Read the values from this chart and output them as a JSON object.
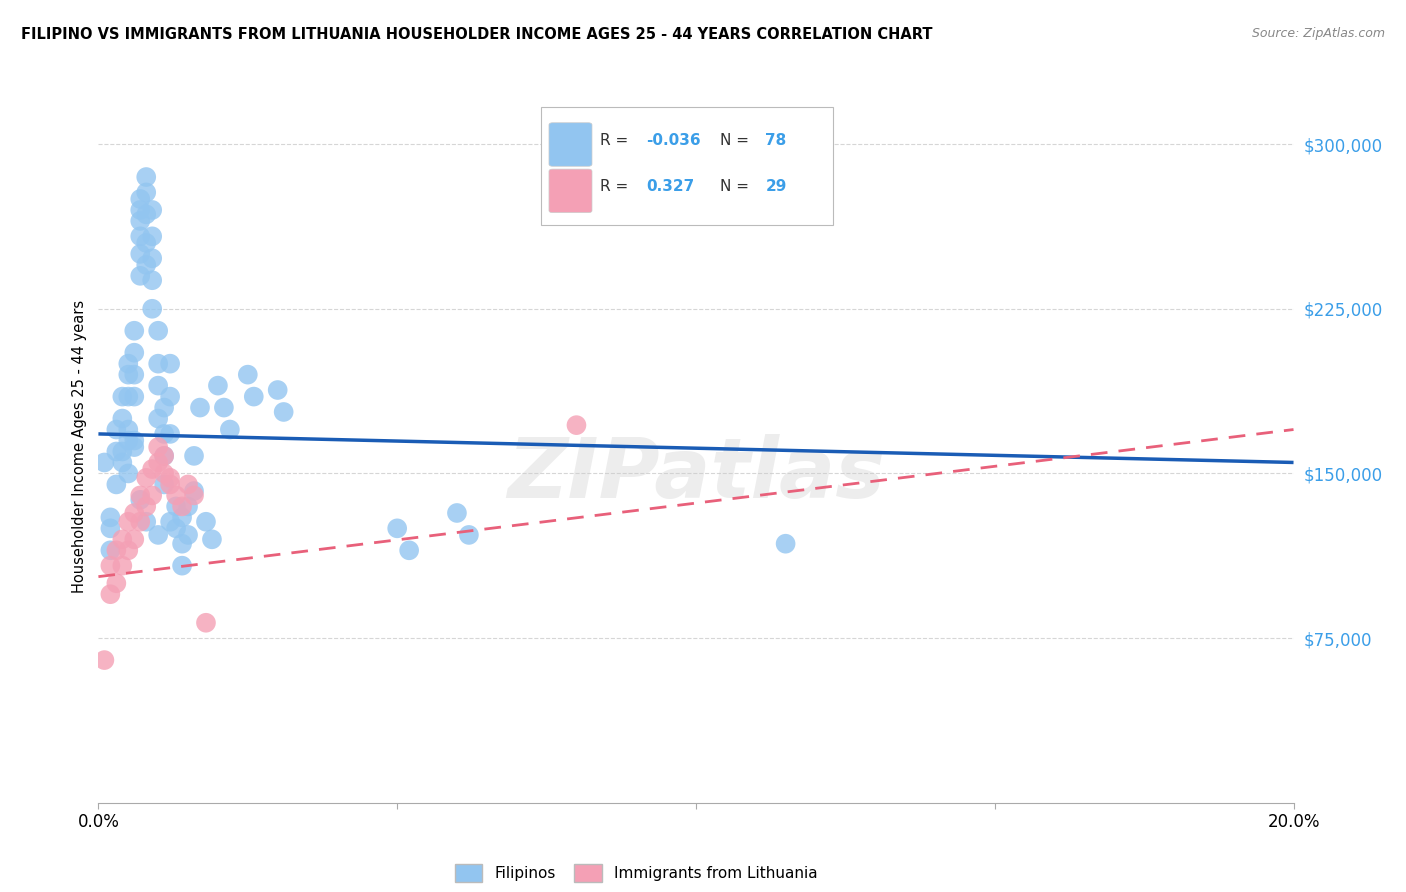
{
  "title": "FILIPINO VS IMMIGRANTS FROM LITHUANIA HOUSEHOLDER INCOME AGES 25 - 44 YEARS CORRELATION CHART",
  "source": "Source: ZipAtlas.com",
  "ylabel": "Householder Income Ages 25 - 44 years",
  "xlim": [
    0.0,
    0.2
  ],
  "ylim": [
    0,
    325000
  ],
  "yticks": [
    75000,
    150000,
    225000,
    300000
  ],
  "ytick_labels": [
    "$75,000",
    "$150,000",
    "$225,000",
    "$300,000"
  ],
  "xticks": [
    0.0,
    0.05,
    0.1,
    0.15,
    0.2
  ],
  "xtick_labels": [
    "0.0%",
    "",
    "",
    "",
    "20.0%"
  ],
  "color_filipino": "#92C5F0",
  "color_lithuania": "#F4A0B5",
  "color_line_filipino": "#1A5CB5",
  "color_line_lithuania": "#E8607A",
  "color_ytick": "#3B9EE8",
  "watermark": "ZIPatlas",
  "filipino_x": [
    0.001,
    0.002,
    0.002,
    0.003,
    0.003,
    0.004,
    0.004,
    0.004,
    0.005,
    0.005,
    0.005,
    0.005,
    0.005,
    0.006,
    0.006,
    0.006,
    0.006,
    0.006,
    0.007,
    0.007,
    0.007,
    0.007,
    0.007,
    0.007,
    0.008,
    0.008,
    0.008,
    0.008,
    0.008,
    0.009,
    0.009,
    0.009,
    0.009,
    0.009,
    0.01,
    0.01,
    0.01,
    0.01,
    0.011,
    0.011,
    0.011,
    0.011,
    0.012,
    0.012,
    0.012,
    0.013,
    0.013,
    0.014,
    0.014,
    0.014,
    0.015,
    0.015,
    0.016,
    0.016,
    0.017,
    0.018,
    0.019,
    0.02,
    0.021,
    0.022,
    0.025,
    0.026,
    0.03,
    0.031,
    0.05,
    0.052,
    0.06,
    0.062,
    0.115,
    0.002,
    0.003,
    0.004,
    0.005,
    0.006,
    0.007,
    0.008,
    0.01,
    0.012
  ],
  "filipino_y": [
    155000,
    130000,
    115000,
    170000,
    160000,
    185000,
    175000,
    160000,
    200000,
    195000,
    185000,
    165000,
    150000,
    215000,
    205000,
    195000,
    185000,
    165000,
    275000,
    270000,
    265000,
    258000,
    250000,
    240000,
    285000,
    278000,
    268000,
    255000,
    245000,
    270000,
    258000,
    248000,
    238000,
    225000,
    215000,
    200000,
    190000,
    175000,
    180000,
    168000,
    158000,
    145000,
    200000,
    185000,
    168000,
    135000,
    125000,
    130000,
    118000,
    108000,
    135000,
    122000,
    158000,
    142000,
    180000,
    128000,
    120000,
    190000,
    180000,
    170000,
    195000,
    185000,
    188000,
    178000,
    125000,
    115000,
    132000,
    122000,
    118000,
    125000,
    145000,
    155000,
    170000,
    162000,
    138000,
    128000,
    122000,
    128000
  ],
  "lithuania_x": [
    0.001,
    0.002,
    0.002,
    0.003,
    0.003,
    0.004,
    0.004,
    0.005,
    0.005,
    0.006,
    0.006,
    0.007,
    0.007,
    0.008,
    0.008,
    0.009,
    0.009,
    0.01,
    0.011,
    0.012,
    0.013,
    0.014,
    0.015,
    0.016,
    0.018,
    0.08,
    0.01,
    0.011,
    0.012
  ],
  "lithuania_y": [
    65000,
    108000,
    95000,
    115000,
    100000,
    120000,
    108000,
    128000,
    115000,
    132000,
    120000,
    140000,
    128000,
    148000,
    135000,
    152000,
    140000,
    155000,
    150000,
    145000,
    140000,
    135000,
    145000,
    140000,
    82000,
    172000,
    162000,
    158000,
    148000
  ],
  "filipino_line_x": [
    0.0,
    0.2
  ],
  "filipino_line_y": [
    168000,
    155000
  ],
  "lithuania_line_x": [
    0.0,
    0.2
  ],
  "lithuania_line_y": [
    103000,
    170000
  ],
  "background_color": "#FFFFFF",
  "grid_color": "#CCCCCC"
}
